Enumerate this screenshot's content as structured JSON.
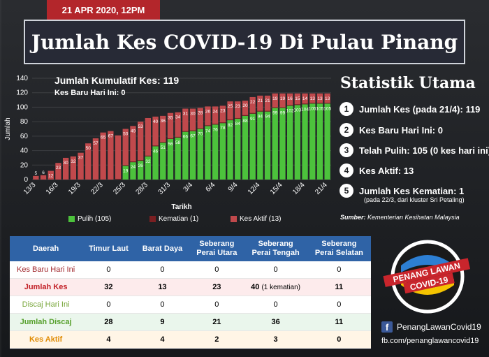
{
  "date": "21 APR 2020, 12PM",
  "title": "Jumlah Kes COVID-19 Di Pulau Pinang",
  "chart_data": {
    "type": "bar",
    "stacked": true,
    "inset_title": "Jumlah Kumulatif Kes: 119",
    "inset_subtitle": "Kes Baru Hari Ini: 0",
    "xlabel": "Tarikh",
    "ylabel": "Jumlah",
    "ylim": [
      0,
      140
    ],
    "yticks": [
      0,
      20,
      40,
      60,
      80,
      100,
      120,
      140
    ],
    "categories": [
      "13/3",
      "14/3",
      "15/3",
      "16/3",
      "17/3",
      "18/3",
      "19/3",
      "20/3",
      "21/3",
      "22/3",
      "23/3",
      "24/3",
      "25/3",
      "26/3",
      "27/3",
      "28/3",
      "29/3",
      "30/3",
      "31/3",
      "1/4",
      "2/4",
      "3/4",
      "4/4",
      "5/4",
      "6/4",
      "7/4",
      "8/4",
      "9/4",
      "10/4",
      "11/4",
      "12/4",
      "13/4",
      "14/4",
      "15/4",
      "16/4",
      "17/4",
      "18/4",
      "19/4",
      "20/4",
      "21/4"
    ],
    "xtick_labels": [
      "13/3",
      "16/3",
      "19/3",
      "22/3",
      "25/3",
      "28/3",
      "31/3",
      "3/4",
      "6/4",
      "9/4",
      "12/4",
      "15/4",
      "18/4",
      "21/4"
    ],
    "series": [
      {
        "name": "Pulih (105)",
        "color": "#4cc23c",
        "values": [
          0,
          0,
          0,
          0,
          0,
          0,
          0,
          0,
          0,
          0,
          0,
          0,
          19,
          24,
          26,
          32,
          46,
          51,
          56,
          58,
          66,
          67,
          70,
          74,
          76,
          78,
          82,
          84,
          88,
          91,
          94,
          94,
          99,
          99,
          102,
          103,
          104,
          105,
          105,
          105
        ]
      },
      {
        "name": "Kematian (1)",
        "color": "#7a1f22",
        "values": [
          0,
          0,
          0,
          0,
          0,
          0,
          0,
          0,
          0,
          0,
          0,
          1,
          1,
          1,
          1,
          1,
          1,
          1,
          1,
          1,
          1,
          1,
          1,
          1,
          1,
          1,
          1,
          1,
          1,
          1,
          1,
          1,
          1,
          1,
          1,
          1,
          1,
          1,
          1,
          1
        ]
      },
      {
        "name": "Kes Aktif (13)",
        "color": "#c0494c",
        "values": [
          5,
          6,
          12,
          23,
          30,
          32,
          37,
          50,
          57,
          65,
          67,
          60,
          50,
          49,
          53,
          52,
          40,
          36,
          35,
          34,
          31,
          30,
          28,
          26,
          24,
          23,
          25,
          23,
          20,
          22,
          21,
          21,
          19,
          19,
          16,
          15,
          14,
          13,
          13,
          13
        ]
      }
    ],
    "bar_labels_red": [
      5,
      6,
      12,
      23,
      30,
      32,
      37,
      50,
      57,
      65,
      67,
      "",
      50,
      49,
      53,
      "",
      40,
      36,
      35,
      34,
      31,
      30,
      28,
      26,
      24,
      23,
      25,
      23,
      20,
      22,
      21,
      21,
      19,
      19,
      16,
      15,
      14,
      13,
      13,
      13
    ],
    "bar_labels_green": [
      "",
      "",
      "",
      "",
      "",
      "",
      "",
      "",
      "",
      "",
      "",
      "",
      19,
      24,
      26,
      32,
      46,
      51,
      56,
      58,
      66,
      67,
      70,
      74,
      76,
      78,
      82,
      84,
      88,
      91,
      94,
      94,
      99,
      99,
      102,
      103,
      104,
      105,
      105,
      105
    ]
  },
  "legend": {
    "recovered": "Pulih (105)",
    "deaths": "Kematian (1)",
    "active": "Kes Aktif (13)"
  },
  "stats": {
    "heading": "Statistik Utama",
    "items": [
      {
        "num": "1",
        "text": "Jumlah Kes (pada 21/4): 119"
      },
      {
        "num": "2",
        "text": "Kes Baru Hari Ini: 0"
      },
      {
        "num": "3",
        "text": "Telah Pulih: 105 (0 kes hari ini)"
      },
      {
        "num": "4",
        "text": "Kes Aktif: 13"
      },
      {
        "num": "5",
        "text": "Jumlah Kes Kematian: 1"
      }
    ],
    "death_note": "(pada 22/3, dari kluster Sri Petaling)",
    "source_label": "Sumber:",
    "source_text": " Kementerian Kesihatan Malaysia"
  },
  "table": {
    "headers": [
      "Daerah",
      "Timur Laut",
      "Barat Daya",
      "Seberang\nPerai Utara",
      "Seberang\nPerai Tengah",
      "Seberang\nPerai Selatan"
    ],
    "rows": [
      [
        "Kes Baru Hari Ini",
        "0",
        "0",
        "0",
        "0",
        "0"
      ],
      [
        "Jumlah Kes",
        "32",
        "13",
        "23",
        "40",
        "11"
      ],
      [
        "Discaj Hari Ini",
        "0",
        "0",
        "0",
        "0",
        "0"
      ],
      [
        "Jumlah Discaj",
        "28",
        "9",
        "21",
        "36",
        "11"
      ],
      [
        "Kes Aktif",
        "4",
        "4",
        "2",
        "3",
        "0"
      ]
    ],
    "death_suffix": "(1 kematian)"
  },
  "brand": {
    "logo_text_1": "PENANG LAWAN",
    "logo_text_2": "COVID-19",
    "fb_name": "PenangLawanCovid19",
    "fb_url": "fb.com/penanglawancovid19"
  }
}
